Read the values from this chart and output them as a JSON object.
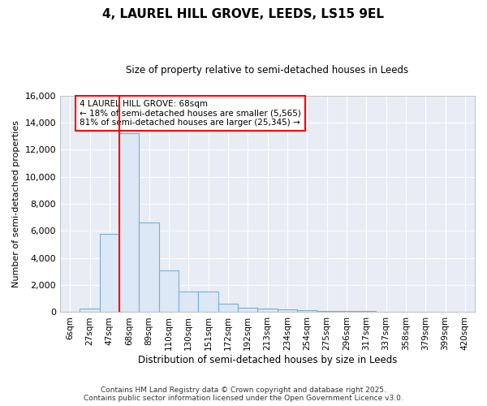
{
  "title": "4, LAUREL HILL GROVE, LEEDS, LS15 9EL",
  "subtitle": "Size of property relative to semi-detached houses in Leeds",
  "xlabel": "Distribution of semi-detached houses by size in Leeds",
  "ylabel": "Number of semi-detached properties",
  "bin_labels": [
    "6sqm",
    "27sqm",
    "47sqm",
    "68sqm",
    "89sqm",
    "110sqm",
    "130sqm",
    "151sqm",
    "172sqm",
    "192sqm",
    "213sqm",
    "234sqm",
    "254sqm",
    "275sqm",
    "296sqm",
    "317sqm",
    "337sqm",
    "358sqm",
    "379sqm",
    "399sqm",
    "420sqm"
  ],
  "bar_values": [
    0,
    290,
    5800,
    13200,
    6600,
    3100,
    1500,
    1500,
    620,
    300,
    250,
    200,
    150,
    100,
    80,
    60,
    50,
    40,
    30,
    20,
    0
  ],
  "bar_color": "#dce8f5",
  "bar_edge_color": "#7badd4",
  "red_line_index": 3,
  "annotation_title": "4 LAUREL HILL GROVE: 68sqm",
  "annotation_line1": "← 18% of semi-detached houses are smaller (5,565)",
  "annotation_line2": "81% of semi-detached houses are larger (25,345) →",
  "annotation_box_color": "white",
  "annotation_box_edge_color": "red",
  "ylim": [
    0,
    16000
  ],
  "yticks": [
    0,
    2000,
    4000,
    6000,
    8000,
    10000,
    12000,
    14000,
    16000
  ],
  "plot_bg_color": "#e8edf5",
  "fig_bg_color": "#ffffff",
  "grid_color": "#ffffff",
  "footer1": "Contains HM Land Registry data © Crown copyright and database right 2025.",
  "footer2": "Contains public sector information licensed under the Open Government Licence v3.0."
}
